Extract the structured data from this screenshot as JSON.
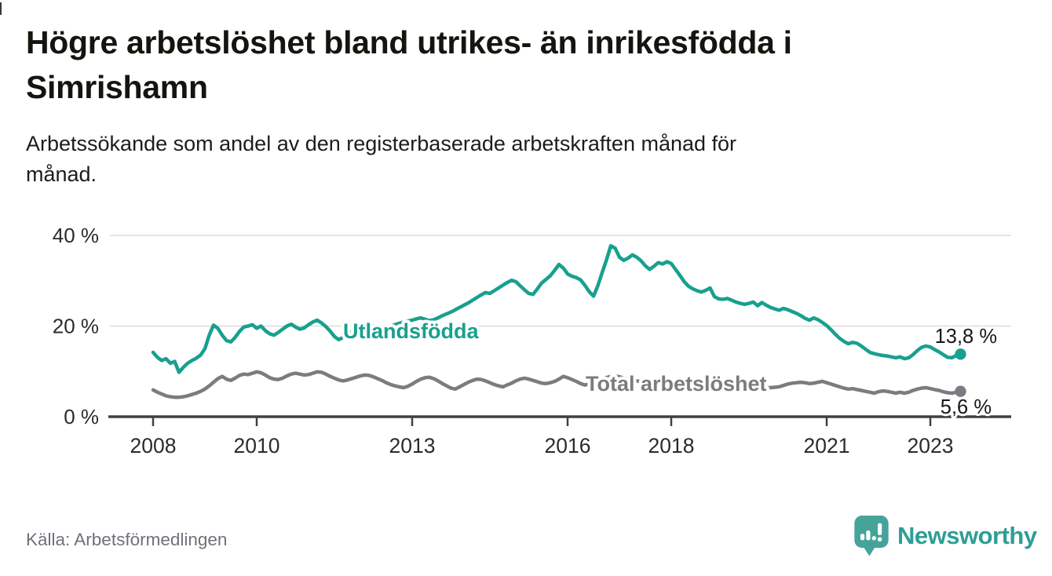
{
  "header": {
    "title_lines": [
      "Högre arbetslöshet bland utrikes- än inrikesfödda i",
      "Simrishamn"
    ],
    "subtitle_lines": [
      "Arbetssökande som andel av den registerbaserade arbetskraften månad för",
      "månad."
    ]
  },
  "chart_data": {
    "type": "line",
    "x_frequency": "monthly",
    "x_start": "2008-01",
    "x_end": "2023-08",
    "ylim": [
      0,
      40
    ],
    "grid": "horizontal",
    "legend_position": "inline-labels",
    "y_ticks": [
      {
        "value": 0,
        "label": "0 %"
      },
      {
        "value": 20,
        "label": "20 %"
      },
      {
        "value": 40,
        "label": "40 %"
      }
    ],
    "x_ticks": [
      {
        "year": 2008,
        "label": "2008"
      },
      {
        "year": 2010,
        "label": "2010"
      },
      {
        "year": 2013,
        "label": "2013"
      },
      {
        "year": 2016,
        "label": "2016"
      },
      {
        "year": 2018,
        "label": "2018"
      },
      {
        "year": 2021,
        "label": "2021"
      },
      {
        "year": 2023,
        "label": "2023"
      }
    ],
    "series": [
      {
        "name": "Utlandsfödda",
        "color": "#18A08E",
        "end_value": 13.8,
        "end_label": "13,8 %",
        "values": [
          14.2,
          13.1,
          12.4,
          12.8,
          11.8,
          12.2,
          9.8,
          10.9,
          11.8,
          12.4,
          12.9,
          13.6,
          15.0,
          18.0,
          20.2,
          19.5,
          18.0,
          16.8,
          16.5,
          17.5,
          18.8,
          19.8,
          20.0,
          20.3,
          19.5,
          20.0,
          19.0,
          18.3,
          18.0,
          18.6,
          19.3,
          20.0,
          20.4,
          19.8,
          19.3,
          19.6,
          20.3,
          20.9,
          21.3,
          20.7,
          19.9,
          18.9,
          17.7,
          17.0,
          17.5,
          18.2,
          18.8,
          19.3,
          19.7,
          20.1,
          20.4,
          20.0,
          19.6,
          19.3,
          19.6,
          20.0,
          20.3,
          20.6,
          20.9,
          21.1,
          21.3,
          21.6,
          21.8,
          21.5,
          21.2,
          21.4,
          21.8,
          22.3,
          22.7,
          23.1,
          23.6,
          24.1,
          24.6,
          25.1,
          25.7,
          26.3,
          26.9,
          27.4,
          27.2,
          27.8,
          28.4,
          29.0,
          29.6,
          30.1,
          29.8,
          28.9,
          28.0,
          27.2,
          27.0,
          28.2,
          29.5,
          30.3,
          31.1,
          32.3,
          33.6,
          32.8,
          31.5,
          31.0,
          30.7,
          30.2,
          29.0,
          27.6,
          26.6,
          28.9,
          31.8,
          34.6,
          37.7,
          37.2,
          35.2,
          34.5,
          35.0,
          35.7,
          35.2,
          34.4,
          33.3,
          32.5,
          33.2,
          34.0,
          33.7,
          34.2,
          33.8,
          32.5,
          31.2,
          29.8,
          28.8,
          28.2,
          27.8,
          27.5,
          27.9,
          28.4,
          26.5,
          26.0,
          25.9,
          26.1,
          25.7,
          25.3,
          25.0,
          24.8,
          25.0,
          25.3,
          24.5,
          25.2,
          24.6,
          24.1,
          23.8,
          23.5,
          23.9,
          23.6,
          23.2,
          22.8,
          22.3,
          21.7,
          21.3,
          21.8,
          21.4,
          20.8,
          20.1,
          19.2,
          18.2,
          17.3,
          16.6,
          16.1,
          16.4,
          16.2,
          15.6,
          14.9,
          14.2,
          13.9,
          13.7,
          13.5,
          13.4,
          13.2,
          13.0,
          13.2,
          12.8,
          13.0,
          13.7,
          14.6,
          15.3,
          15.6,
          15.4,
          14.8,
          14.3,
          13.7,
          13.1,
          13.0,
          13.5,
          13.8
        ]
      },
      {
        "name": "Total arbetslöshet",
        "color": "#7B7B81",
        "end_value": 5.6,
        "end_label": "5,6 %",
        "values": [
          5.9,
          5.4,
          5.0,
          4.6,
          4.4,
          4.3,
          4.3,
          4.4,
          4.6,
          4.9,
          5.2,
          5.6,
          6.1,
          6.8,
          7.6,
          8.4,
          8.9,
          8.3,
          8.0,
          8.5,
          9.1,
          9.4,
          9.3,
          9.6,
          9.9,
          9.7,
          9.2,
          8.6,
          8.3,
          8.2,
          8.5,
          9.0,
          9.4,
          9.6,
          9.4,
          9.2,
          9.3,
          9.6,
          9.9,
          9.8,
          9.4,
          8.9,
          8.5,
          8.1,
          7.9,
          8.1,
          8.4,
          8.7,
          9.0,
          9.2,
          9.1,
          8.8,
          8.4,
          8.0,
          7.5,
          7.1,
          6.8,
          6.6,
          6.4,
          6.7,
          7.2,
          7.8,
          8.3,
          8.6,
          8.7,
          8.4,
          7.9,
          7.3,
          6.8,
          6.3,
          6.1,
          6.6,
          7.1,
          7.6,
          8.0,
          8.3,
          8.2,
          7.9,
          7.5,
          7.1,
          6.8,
          6.6,
          7.0,
          7.4,
          7.9,
          8.3,
          8.5,
          8.3,
          8.0,
          7.7,
          7.4,
          7.3,
          7.5,
          7.8,
          8.3,
          8.9,
          8.6,
          8.2,
          7.8,
          7.3,
          7.0,
          7.2,
          7.5,
          7.9,
          8.3,
          8.6,
          8.9,
          9.0,
          8.8,
          8.5,
          8.3,
          8.1,
          7.9,
          7.7,
          7.8,
          8.0,
          8.2,
          8.3,
          8.2,
          8.0,
          7.8,
          7.6,
          7.4,
          7.2,
          7.0,
          6.9,
          7.0,
          7.2,
          7.3,
          7.2,
          7.0,
          6.9,
          6.8,
          6.7,
          6.6,
          6.5,
          6.4,
          6.4,
          6.5,
          6.6,
          6.6,
          6.5,
          6.4,
          6.4,
          6.5,
          6.6,
          6.9,
          7.2,
          7.4,
          7.5,
          7.6,
          7.5,
          7.3,
          7.4,
          7.6,
          7.8,
          7.5,
          7.2,
          6.9,
          6.6,
          6.3,
          6.1,
          6.2,
          6.0,
          5.8,
          5.6,
          5.4,
          5.2,
          5.5,
          5.7,
          5.6,
          5.4,
          5.2,
          5.4,
          5.2,
          5.4,
          5.8,
          6.1,
          6.3,
          6.4,
          6.2,
          6.0,
          5.8,
          5.5,
          5.3,
          5.2,
          5.4,
          5.6
        ]
      }
    ]
  },
  "footer": {
    "source": "Källa: Arbetsförmedlingen",
    "logo_text": "Newsworthy"
  }
}
